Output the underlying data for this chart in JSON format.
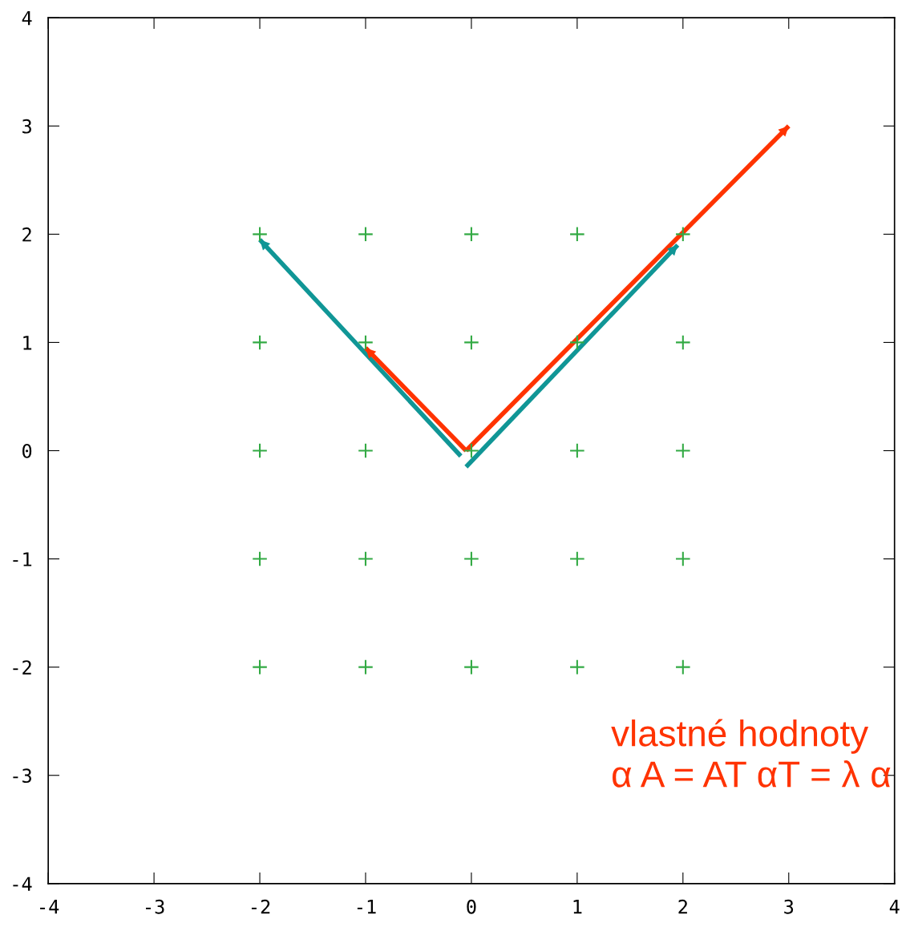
{
  "chart_data": {
    "type": "scatter",
    "xlim": [
      -4,
      4
    ],
    "ylim": [
      -4,
      4
    ],
    "xticks": [
      -4,
      -3,
      -2,
      -1,
      0,
      1,
      2,
      3,
      4
    ],
    "yticks": [
      -4,
      -3,
      -2,
      -1,
      0,
      1,
      2,
      3,
      4
    ],
    "grid": false,
    "legend": false,
    "series": [
      {
        "marker": "cross",
        "color": "#33aa44",
        "x": [
          -2,
          -1,
          0,
          1,
          2,
          -2,
          -1,
          0,
          1,
          2,
          -2,
          -1,
          0,
          1,
          2,
          -2,
          -1,
          0,
          1,
          2,
          -2,
          -1,
          0,
          1,
          2
        ],
        "values": [
          2,
          2,
          2,
          2,
          2,
          1,
          1,
          1,
          1,
          1,
          0,
          0,
          0,
          0,
          0,
          -1,
          -1,
          -1,
          -1,
          -1,
          -2,
          -2,
          -2,
          -2,
          -2
        ]
      },
      {
        "type": "line",
        "color": "#109696",
        "x": [
          -0.1,
          -2
        ],
        "values": [
          -0.05,
          1.95
        ]
      },
      {
        "type": "line",
        "color": "#109696",
        "x": [
          -0.05,
          1.95
        ],
        "values": [
          -0.15,
          1.9
        ]
      },
      {
        "type": "line",
        "color": "#ff3300",
        "x": [
          -0.05,
          -1
        ],
        "values": [
          0,
          0.95
        ]
      },
      {
        "type": "line",
        "color": "#ff3300",
        "x": [
          -0.05,
          3
        ],
        "values": [
          0,
          3
        ]
      }
    ],
    "annotations": [
      "vlastné hodnoty\nα A = AT αT = λ α"
    ]
  }
}
